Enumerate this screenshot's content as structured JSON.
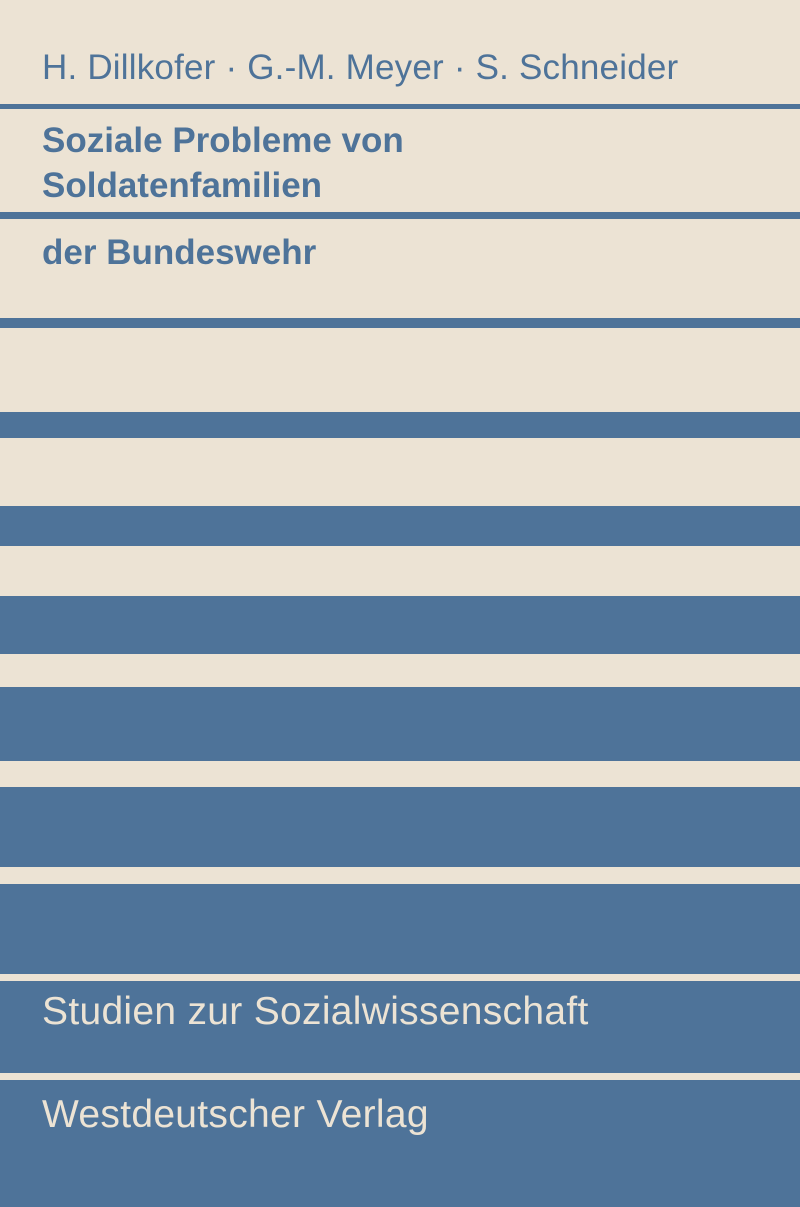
{
  "cover": {
    "authors": "H. Dillkofer · G.-M. Meyer · S. Schneider",
    "title_line_1": "Soziale Probleme von",
    "title_line_2": "Soldatenfamilien",
    "subtitle": "der Bundeswehr",
    "series": "Studien zur Sozialwissenschaft",
    "publisher": "Westdeutscher Verlag"
  },
  "colors": {
    "background": "#ece3d4",
    "accent": "#4e7399"
  }
}
